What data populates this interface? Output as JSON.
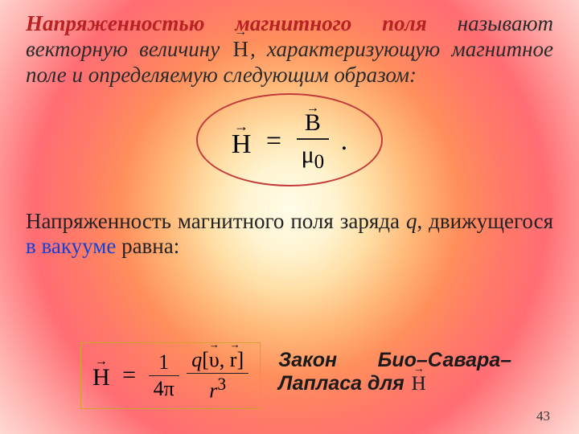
{
  "paragraph1": {
    "highlighted_prefix": "Напряженностью магнитного поля",
    "rest_before_H": " называют векторную величину ",
    "vector_symbol": "H",
    "vector_arrow": "→",
    "rest_after_H": ", характеризующую магнитное поле и определяемую следующим образом:",
    "highlight_color": "#b82222"
  },
  "formula1": {
    "left_symbol": "H",
    "left_arrow": "→",
    "equals": "=",
    "numerator_symbol": "B",
    "numerator_arrow": "→",
    "denominator": "μ",
    "denominator_sub": "0",
    "period": ".",
    "ellipse_border_color": "#c23a3a"
  },
  "paragraph2": {
    "text_before_q": "Напряженность магнитного поля заряда ",
    "q": "q",
    "text_comma": ", движущегося ",
    "blue_text": "в вакууме",
    "text_after": " равна:",
    "blue_color": "#1a3fd1"
  },
  "formula2": {
    "left_symbol": "H",
    "left_arrow": "→",
    "equals": "=",
    "frac_a_num": "1",
    "frac_a_den": "4π",
    "q": "q",
    "bracket_open": "[",
    "v_symbol": "υ",
    "v_arrow": "→",
    "comma": ",",
    "r_symbol": "r",
    "r_arrow": "→",
    "bracket_close": "]",
    "frac_b_den_base": "r",
    "frac_b_den_exp": "3",
    "box_border_color": "#d4a030"
  },
  "law_box": {
    "text_before_H": "Закон Био–Савара–Лапласа для ",
    "vector_symbol": "H",
    "vector_arrow": "→"
  },
  "page_number": "43"
}
